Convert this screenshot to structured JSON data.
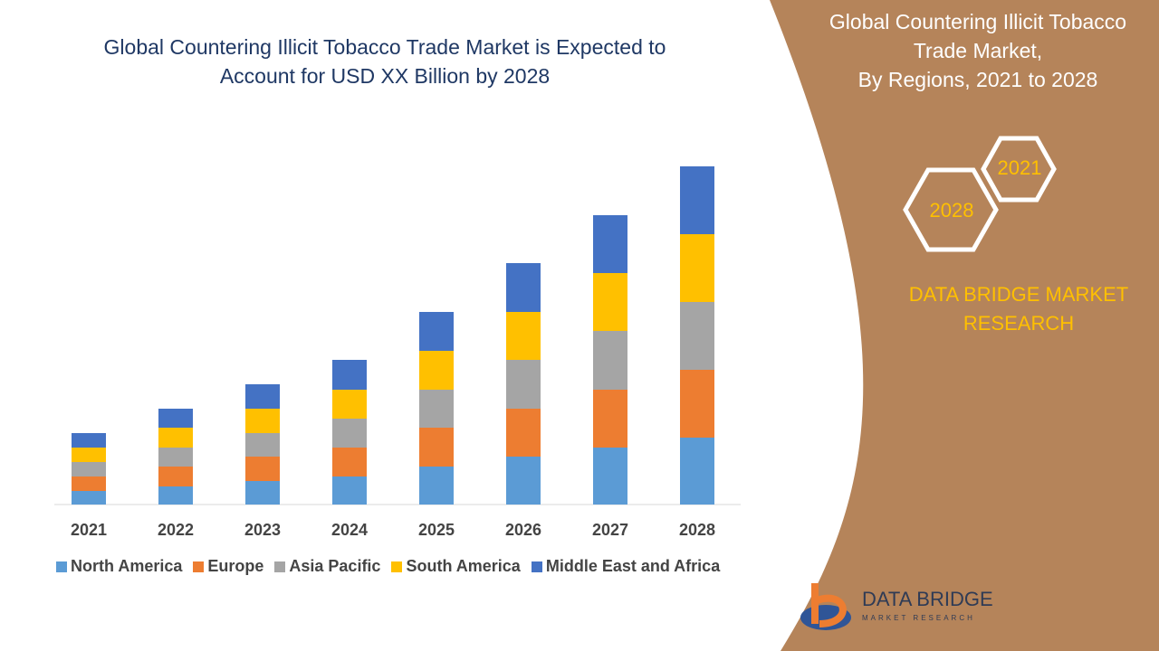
{
  "chart_data": {
    "type": "stacked_bar",
    "title": "Global Countering Illicit Tobacco Trade Market is Expected to Account for USD XX Billion by 2028",
    "categories": [
      "2021",
      "2022",
      "2023",
      "2024",
      "2025",
      "2026",
      "2027",
      "2028"
    ],
    "series": [
      {
        "name": "North America",
        "color": "#5b9bd5",
        "values": [
          15,
          20,
          26,
          31,
          42,
          53,
          63,
          74
        ]
      },
      {
        "name": "Europe",
        "color": "#ed7d31",
        "values": [
          16,
          22,
          27,
          32,
          43,
          53,
          64,
          75
        ]
      },
      {
        "name": "Asia Pacific",
        "color": "#a5a5a5",
        "values": [
          16,
          21,
          26,
          32,
          42,
          54,
          65,
          75
        ]
      },
      {
        "name": "South America",
        "color": "#ffc000",
        "values": [
          16,
          22,
          27,
          32,
          43,
          53,
          64,
          75
        ]
      },
      {
        "name": "Middle East and Africa",
        "color": "#4472c4",
        "values": [
          16,
          21,
          27,
          33,
          43,
          54,
          64,
          75
        ]
      }
    ],
    "ylim": [
      0,
      400
    ]
  },
  "panel": {
    "title_lines": [
      "Global Countering Illicit Tobacco",
      "Trade Market,",
      "By Regions, 2021 to 2028"
    ],
    "hex_start": "2021",
    "hex_end": "2028",
    "brand": "DATA BRIDGE MARKET RESEARCH"
  },
  "logo": {
    "name": "DATA BRIDGE",
    "tagline": "MARKET RESEARCH"
  }
}
